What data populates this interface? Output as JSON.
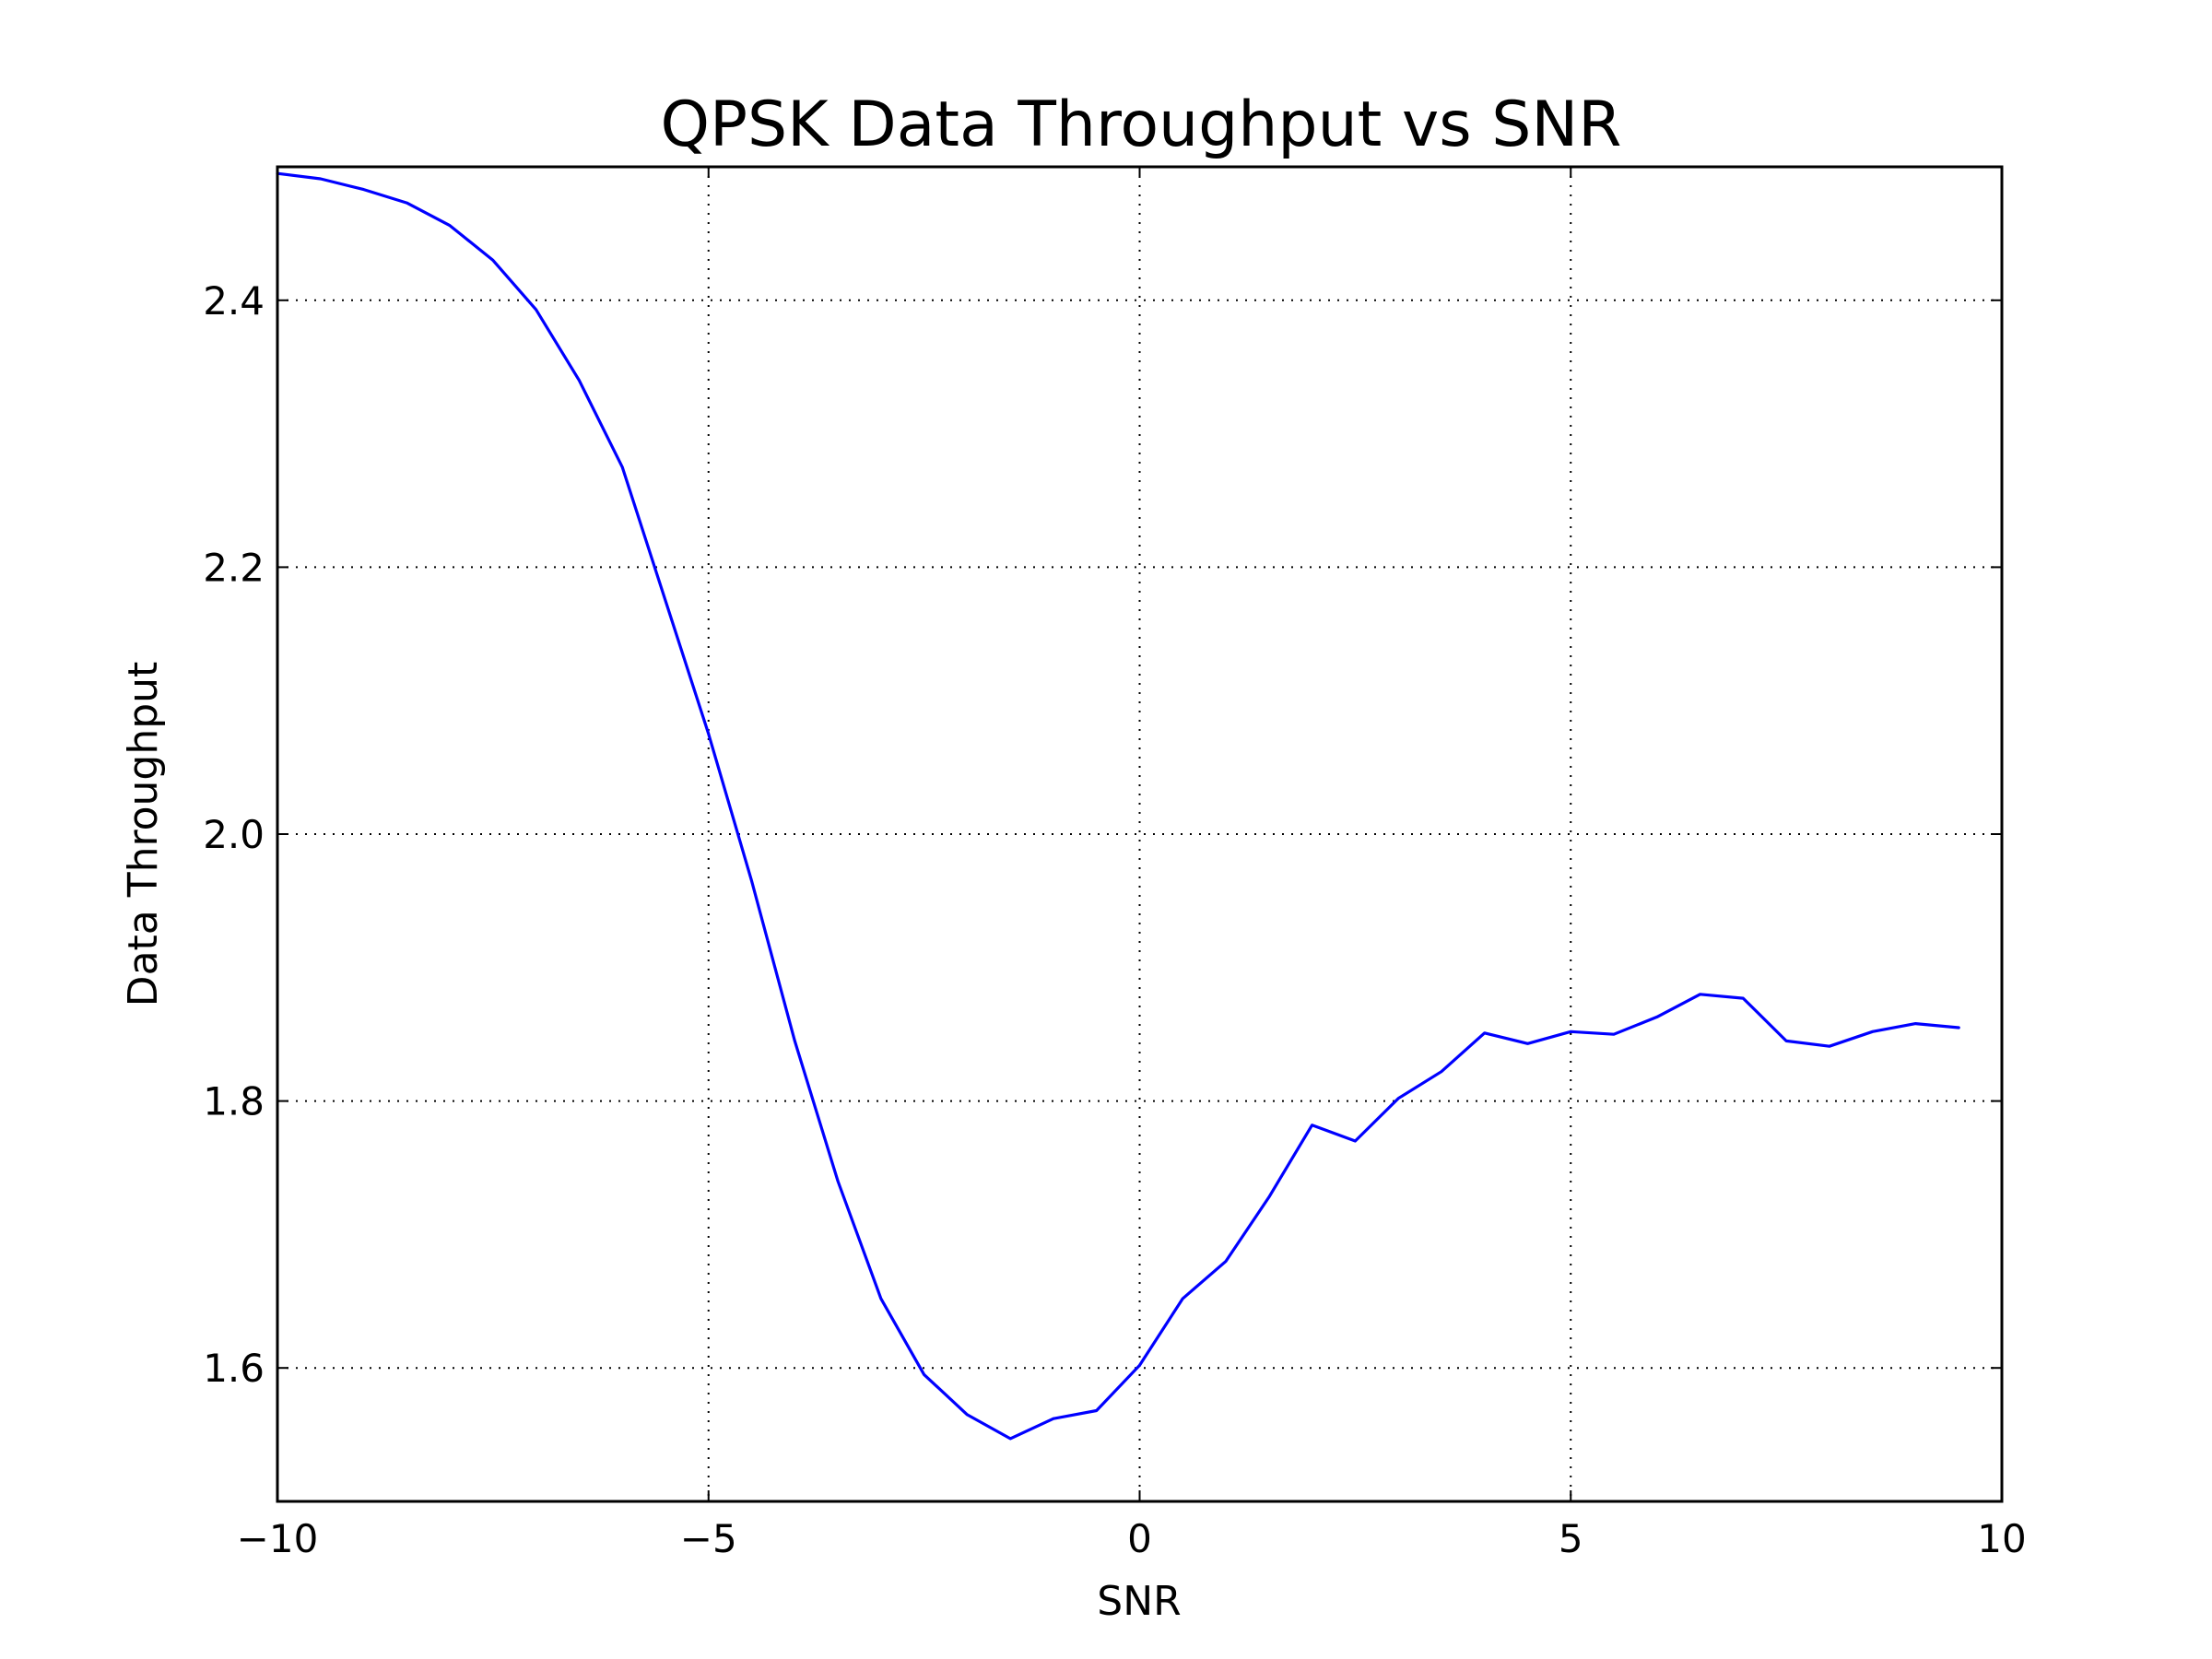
{
  "chart_data": {
    "type": "line",
    "title": "QPSK Data Throughput vs SNR",
    "xlabel": "SNR",
    "ylabel": "Data Throughput",
    "xlim": [
      -10,
      10
    ],
    "ylim": [
      1.5,
      2.5
    ],
    "x_ticks": [
      -10,
      -5,
      0,
      5,
      10
    ],
    "x_tick_labels": [
      "−10",
      "−5",
      "0",
      "5",
      "10"
    ],
    "y_ticks": [
      1.6,
      1.8,
      2.0,
      2.2,
      2.4
    ],
    "y_tick_labels": [
      "1.6",
      "1.8",
      "2.0",
      "2.2",
      "2.4"
    ],
    "grid": true,
    "colors": {
      "line": "#0000ff",
      "frame": "#000000",
      "background": "#ffffff"
    },
    "series": [
      {
        "x": [
          -10,
          -9.5,
          -9,
          -8.5,
          -8,
          -7.5,
          -7,
          -6.5,
          -6,
          -5.5,
          -5,
          -4.5,
          -4,
          -3.5,
          -3,
          -2.5,
          -2,
          -1.5,
          -1,
          -0.5,
          0,
          0.5,
          1,
          1.5,
          2,
          2.5,
          3,
          3.5,
          4,
          4.5,
          5,
          5.5,
          6,
          6.5,
          7,
          7.5,
          8,
          8.5,
          9,
          9.5
        ],
        "y": [
          2.495,
          2.491,
          2.483,
          2.473,
          2.456,
          2.43,
          2.393,
          2.34,
          2.275,
          2.175,
          2.075,
          1.965,
          1.845,
          1.74,
          1.652,
          1.595,
          1.565,
          1.547,
          1.562,
          1.568,
          1.602,
          1.652,
          1.68,
          1.728,
          1.782,
          1.77,
          1.802,
          1.822,
          1.851,
          1.843,
          1.852,
          1.85,
          1.863,
          1.88,
          1.877,
          1.845,
          1.841,
          1.852,
          1.858,
          1.855
        ]
      }
    ]
  }
}
